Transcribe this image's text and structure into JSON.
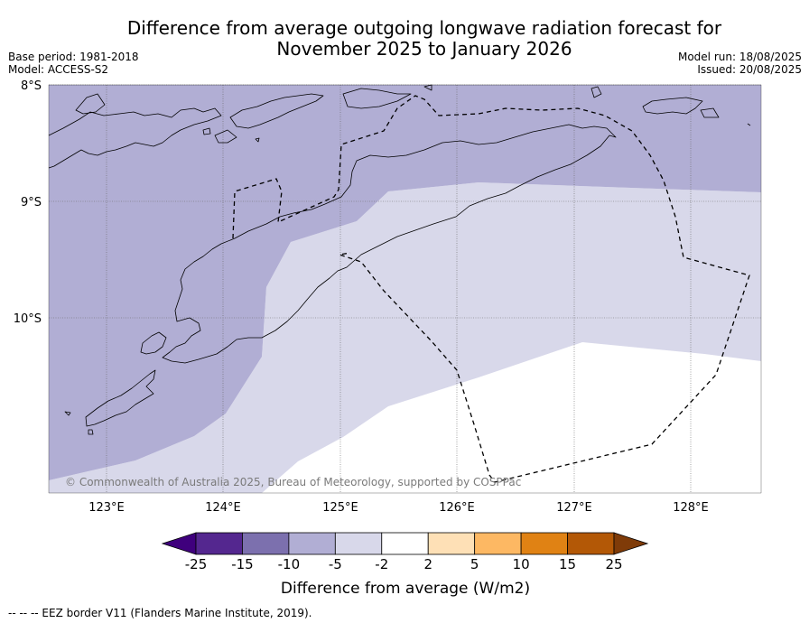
{
  "title": {
    "line1": "Difference from average outgoing longwave radiation forecast for",
    "line2": "November 2025 to January 2026"
  },
  "meta_left": {
    "base_period": "Base period: 1981-2018",
    "model": "Model: ACCESS-S2"
  },
  "meta_right": {
    "model_run": "Model run: 18/08/2025",
    "issued": "Issued: 20/08/2025"
  },
  "map": {
    "lat_labels": [
      "8°S",
      "9°S",
      "10°S"
    ],
    "lon_labels": [
      "123°E",
      "124°E",
      "125°E",
      "126°E",
      "127°E",
      "128°E"
    ],
    "copyright": "© Commonwealth of Australia 2025, Bureau of Meteorology, supported by COSPPac",
    "colors": {
      "diff_-10_-5": "#b1aed4",
      "diff_-5_-2": "#d8d8ea",
      "diff_-2_2": "#ffffff",
      "coast": "#000000",
      "eez": "#000000"
    }
  },
  "colorbar": {
    "tick_labels": [
      "-25",
      "-15",
      "-10",
      "-5",
      "-2",
      "2",
      "5",
      "10",
      "15",
      "25"
    ],
    "colors": [
      "#3f007d",
      "#54278f",
      "#7c70ae",
      "#b1aed4",
      "#d8d8ea",
      "#ffffff",
      "#fee0b6",
      "#fdb863",
      "#e08214",
      "#b35806",
      "#7f3b08"
    ],
    "title": "Difference from average (W/m2)"
  },
  "footnote": "--  --  -- EEZ border V11 (Flanders Marine Institute, 2019)."
}
